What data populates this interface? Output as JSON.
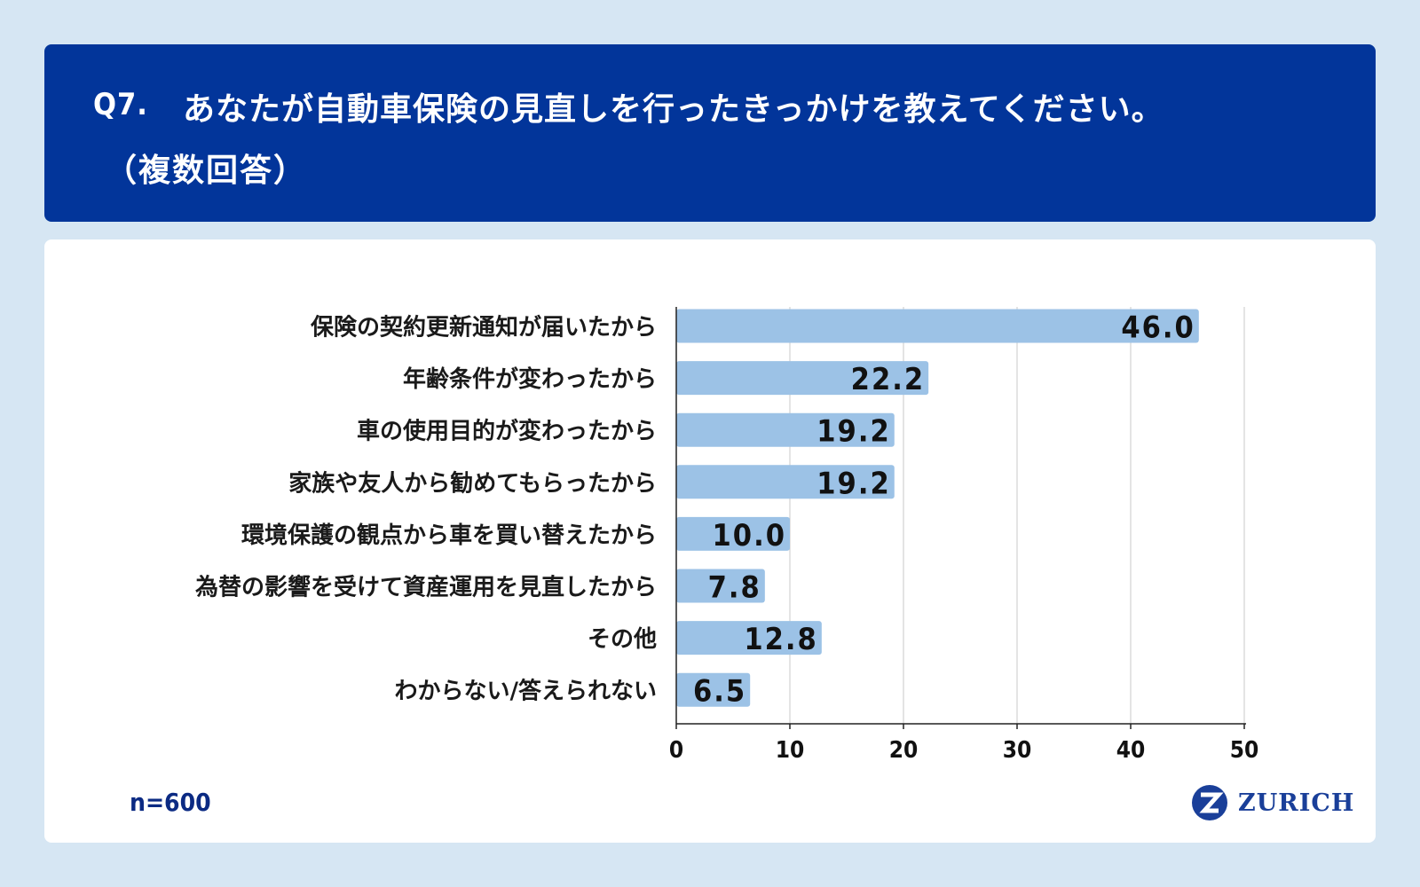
{
  "header": {
    "question_number": "Q7.",
    "question_text": "あなたが自動車保険の見直しを行ったきっかけを教えてください。",
    "question_sub": "（複数回答）"
  },
  "footer": {
    "sample_size": "n=600",
    "brand": "ZURICH"
  },
  "colors": {
    "header_bg": "#02359a",
    "bar": "#9cc2e6",
    "grid": "#c8c8c8",
    "text": "#1a1a1a",
    "brand": "#1a3f99"
  },
  "chart_data": {
    "type": "bar",
    "orientation": "horizontal",
    "categories": [
      "保険の契約更新通知が届いたから",
      "年齢条件が変わったから",
      "車の使用目的が変わったから",
      "家族や友人から勧めてもらったから",
      "環境保護の観点から車を買い替えたから",
      "為替の影響を受けて資産運用を見直したから",
      "その他",
      "わからない/答えられない"
    ],
    "values": [
      46.0,
      22.2,
      19.2,
      19.2,
      10.0,
      7.8,
      12.8,
      6.5
    ],
    "value_labels": [
      "46.0",
      "22.2",
      "19.2",
      "19.2",
      "10.0",
      "7.8",
      "12.8",
      "6.5"
    ],
    "xlim": [
      0,
      50
    ],
    "xticks": [
      0,
      10,
      20,
      30,
      40,
      50
    ],
    "grid": true,
    "title": "",
    "xlabel": "",
    "ylabel": ""
  }
}
